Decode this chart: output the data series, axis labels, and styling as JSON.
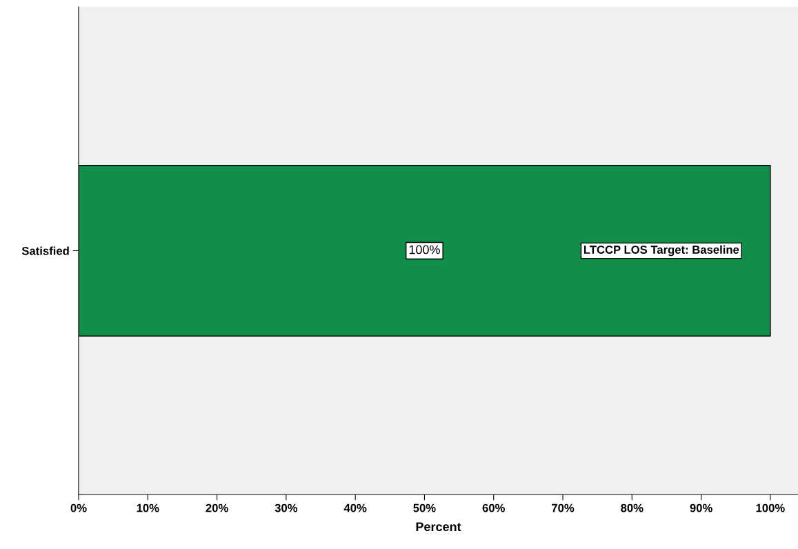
{
  "chart_data": {
    "type": "bar",
    "orientation": "horizontal",
    "xlabel": "Percent",
    "categories": [
      "Satisfied"
    ],
    "values": [
      100
    ],
    "value_labels": [
      "100%"
    ],
    "color": "#118e4a",
    "annotations": [
      "LTCCP LOS Target: Baseline"
    ],
    "xlim": [
      0,
      104
    ],
    "xticks": [
      {
        "value": 0,
        "label": "0%"
      },
      {
        "value": 10,
        "label": "10%"
      },
      {
        "value": 20,
        "label": "20%"
      },
      {
        "value": 30,
        "label": "30%"
      },
      {
        "value": 40,
        "label": "40%"
      },
      {
        "value": 50,
        "label": "50%"
      },
      {
        "value": 60,
        "label": "60%"
      },
      {
        "value": 70,
        "label": "70%"
      },
      {
        "value": 80,
        "label": "80%"
      },
      {
        "value": 90,
        "label": "90%"
      },
      {
        "value": 100,
        "label": "100%"
      }
    ],
    "grid": false,
    "legend": false
  }
}
